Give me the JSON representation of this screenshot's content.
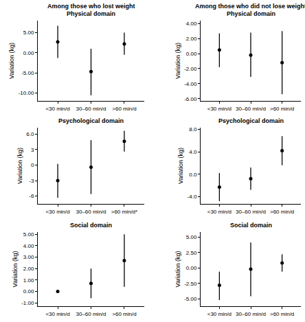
{
  "column_titles": [
    "Among those who lost weight",
    "Among those who did not lose weight"
  ],
  "chart_data": [
    {
      "type": "scatter",
      "title": "Physical domain",
      "y_label": "Variation (kg)",
      "categories": [
        "<30 min/d",
        "30–60 min/d",
        ">60 min/d"
      ],
      "values": [
        2.7,
        -4.7,
        2.2
      ],
      "lower": [
        -1.3,
        -10.6,
        -0.5
      ],
      "upper": [
        6.7,
        1.0,
        5.0
      ],
      "ylim": [
        -12,
        8
      ],
      "yticks": [
        {
          "value": -10,
          "label": "-10.00"
        },
        {
          "value": -5,
          "label": "-5.00"
        },
        {
          "value": 0,
          "label": "0.00"
        },
        {
          "value": 5,
          "label": "5.00"
        }
      ],
      "grid": false,
      "color": "#000000"
    },
    {
      "type": "scatter",
      "title": "Physical domain",
      "y_label": "Variation (kg)",
      "categories": [
        "<30 min/d",
        "30–60 min/d",
        ">60 min/d"
      ],
      "values": [
        0.5,
        -0.2,
        -1.2
      ],
      "lower": [
        -1.8,
        -3.1,
        -5.4
      ],
      "upper": [
        2.7,
        2.8,
        3.0
      ],
      "ylim": [
        -6.3,
        4.4
      ],
      "yticks": [
        {
          "value": -6,
          "label": "-6.00"
        },
        {
          "value": -4,
          "label": "-4.00"
        },
        {
          "value": -2,
          "label": "-2.00"
        },
        {
          "value": 0,
          "label": "0.00"
        },
        {
          "value": 2,
          "label": "2.00"
        },
        {
          "value": 4,
          "label": "4.00"
        }
      ],
      "grid": false,
      "color": "#000000"
    },
    {
      "type": "scatter",
      "title": "Psychological domain",
      "y_label": "Variation (kg)",
      "categories": [
        "<30 min/d",
        "30–60 min/d",
        ">60 min/d*"
      ],
      "values": [
        -3.0,
        -0.4,
        4.6
      ],
      "lower": [
        -6.3,
        -5.6,
        2.6
      ],
      "upper": [
        0.2,
        4.8,
        6.6
      ],
      "ylim": [
        -7.5,
        7.2
      ],
      "yticks": [
        -6,
        -3,
        0,
        3,
        {
          "value": 6,
          "label": "6.0"
        }
      ],
      "grid": false,
      "color": "#000000"
    },
    {
      "type": "scatter",
      "title": "Psychological domain",
      "y_label": "Variation (kg)",
      "categories": [
        "<30 min/d",
        "30–60 min/d",
        ">60 min/d"
      ],
      "values": [
        -2.3,
        -0.8,
        4.2
      ],
      "lower": [
        -4.8,
        -2.8,
        1.6
      ],
      "upper": [
        0.2,
        1.2,
        6.8
      ],
      "ylim": [
        -5.3,
        8.3
      ],
      "yticks": [
        {
          "value": -4,
          "label": "-4.0"
        },
        {
          "value": 0,
          "label": "0.0"
        },
        {
          "value": 4,
          "label": "4.0"
        },
        {
          "value": 8,
          "label": "8.0"
        }
      ],
      "grid": false,
      "color": "#000000"
    },
    {
      "type": "scatter",
      "title": "Social domain",
      "y_label": "Variation (kg)",
      "categories": [
        "<30 min/d",
        "30–60 min/d",
        ">60 min/d"
      ],
      "values": [
        0.0,
        0.7,
        2.7
      ],
      "lower": [
        0.0,
        -0.6,
        0.4
      ],
      "upper": [
        0.0,
        2.0,
        5.0
      ],
      "ylim": [
        -1.3,
        5.2
      ],
      "yticks": [
        {
          "value": -1,
          "label": "-1.00"
        },
        {
          "value": 0,
          "label": "0.00"
        },
        {
          "value": 1,
          "label": "1.00"
        },
        {
          "value": 2,
          "label": "2.00"
        },
        {
          "value": 3,
          "label": "3.00"
        },
        {
          "value": 4,
          "label": "4.00"
        },
        {
          "value": 5,
          "label": "5.00"
        }
      ],
      "grid": false,
      "color": "#000000"
    },
    {
      "type": "scatter",
      "title": "Social domain",
      "y_label": "Variation (kg)",
      "categories": [
        "<30 min/d",
        "30–60 min/d",
        ">60 min/d"
      ],
      "values": [
        -2.8,
        -0.2,
        0.8
      ],
      "lower": [
        -5.2,
        -4.6,
        -0.6
      ],
      "upper": [
        -0.6,
        4.1,
        2.2
      ],
      "ylim": [
        -6.2,
        5.8
      ],
      "yticks": [
        {
          "value": -5,
          "label": "-5.00"
        },
        {
          "value": -2.5,
          "label": "-2.50"
        },
        {
          "value": 0,
          "label": "0.00"
        },
        {
          "value": 2.5,
          "label": "2.50"
        },
        {
          "value": 5,
          "label": "5.00"
        }
      ],
      "grid": false,
      "color": "#000000"
    }
  ]
}
